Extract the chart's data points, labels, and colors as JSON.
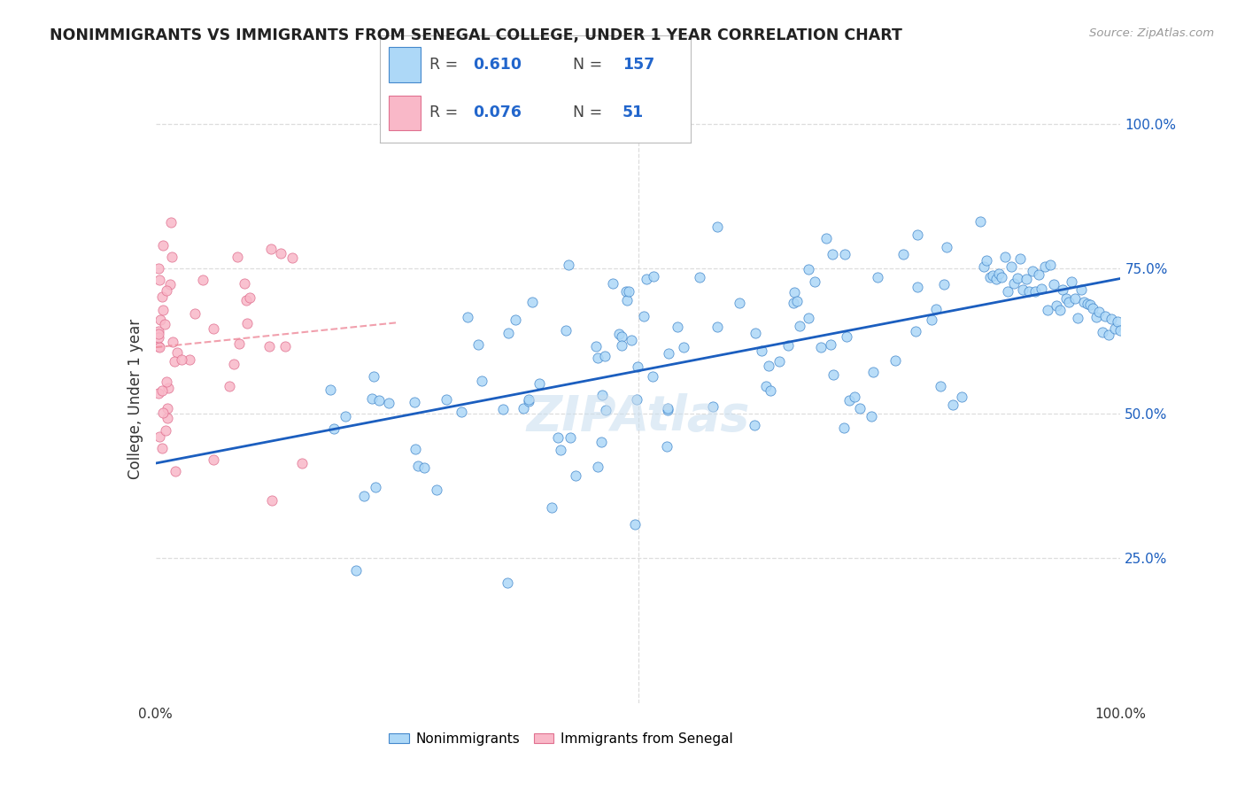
{
  "title": "NONIMMIGRANTS VS IMMIGRANTS FROM SENEGAL COLLEGE, UNDER 1 YEAR CORRELATION CHART",
  "source": "Source: ZipAtlas.com",
  "ylabel": "College, Under 1 year",
  "right_yticks": [
    "100.0%",
    "75.0%",
    "50.0%",
    "25.0%"
  ],
  "right_ytick_vals": [
    1.0,
    0.75,
    0.5,
    0.25
  ],
  "blue_R": 0.61,
  "blue_N": 157,
  "pink_R": 0.076,
  "pink_N": 51,
  "blue_color": "#ADD8F7",
  "pink_color": "#F9B8C8",
  "blue_edge_color": "#4488CC",
  "pink_edge_color": "#E07090",
  "blue_line_color": "#1B5EBF",
  "pink_line_color": "#EE8899",
  "background_color": "#FFFFFF",
  "grid_color": "#DDDDDD",
  "title_color": "#222222",
  "watermark": "ZIPAtlas",
  "legend_R_N_color": "#2266CC",
  "legend_label_color": "#444444"
}
